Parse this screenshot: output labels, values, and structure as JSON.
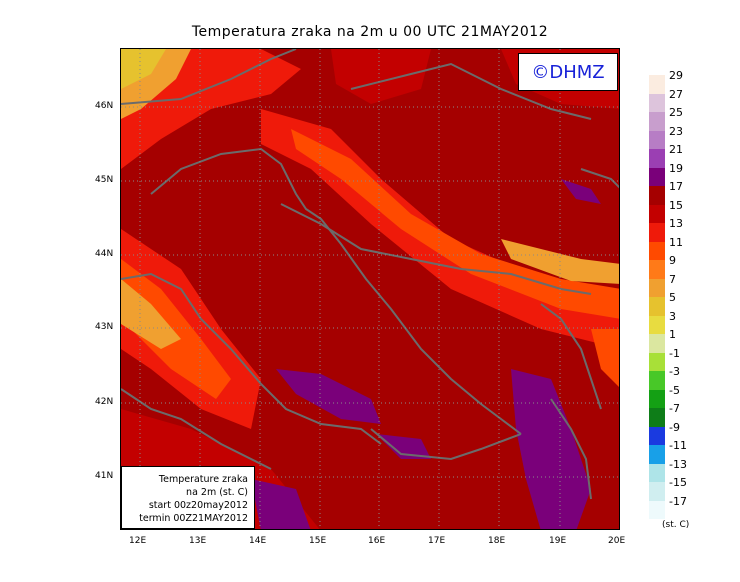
{
  "title": "Temperatura zraka na 2m u 00 UTC 21MAY2012",
  "logo": "©DHMZ",
  "info_box": {
    "line1": "Temperature zraka",
    "line2": "na 2m (st. C)",
    "line3": "start 00z20may2012",
    "line4": "termin 00Z21MAY2012"
  },
  "x_ticks": [
    "12E",
    "13E",
    "14E",
    "15E",
    "16E",
    "17E",
    "18E",
    "19E",
    "20E"
  ],
  "y_ticks": [
    "46N",
    "45N",
    "44N",
    "43N",
    "42N",
    "41N"
  ],
  "colorbar": {
    "labels": [
      "29",
      "27",
      "25",
      "23",
      "21",
      "19",
      "17",
      "15",
      "13",
      "11",
      "9",
      "7",
      "5",
      "3",
      "1",
      "-1",
      "-3",
      "-5",
      "-7",
      "-9",
      "-11",
      "-13",
      "-15",
      "-17"
    ],
    "colors": [
      "#fbece0",
      "#ddc4dc",
      "#c89ecd",
      "#b77dc5",
      "#9b3fb3",
      "#7a007a",
      "#a50000",
      "#c30000",
      "#ef1a0a",
      "#ff4a00",
      "#ff7a18",
      "#f0a030",
      "#e6c22e",
      "#e8dc40",
      "#dbe7a0",
      "#a8e038",
      "#48c828",
      "#14a014",
      "#0e7d18",
      "#1a3ae0",
      "#18a0e8",
      "#aee4e8",
      "#d0eef0",
      "#eefafc"
    ],
    "unit": "(st. C)"
  }
}
